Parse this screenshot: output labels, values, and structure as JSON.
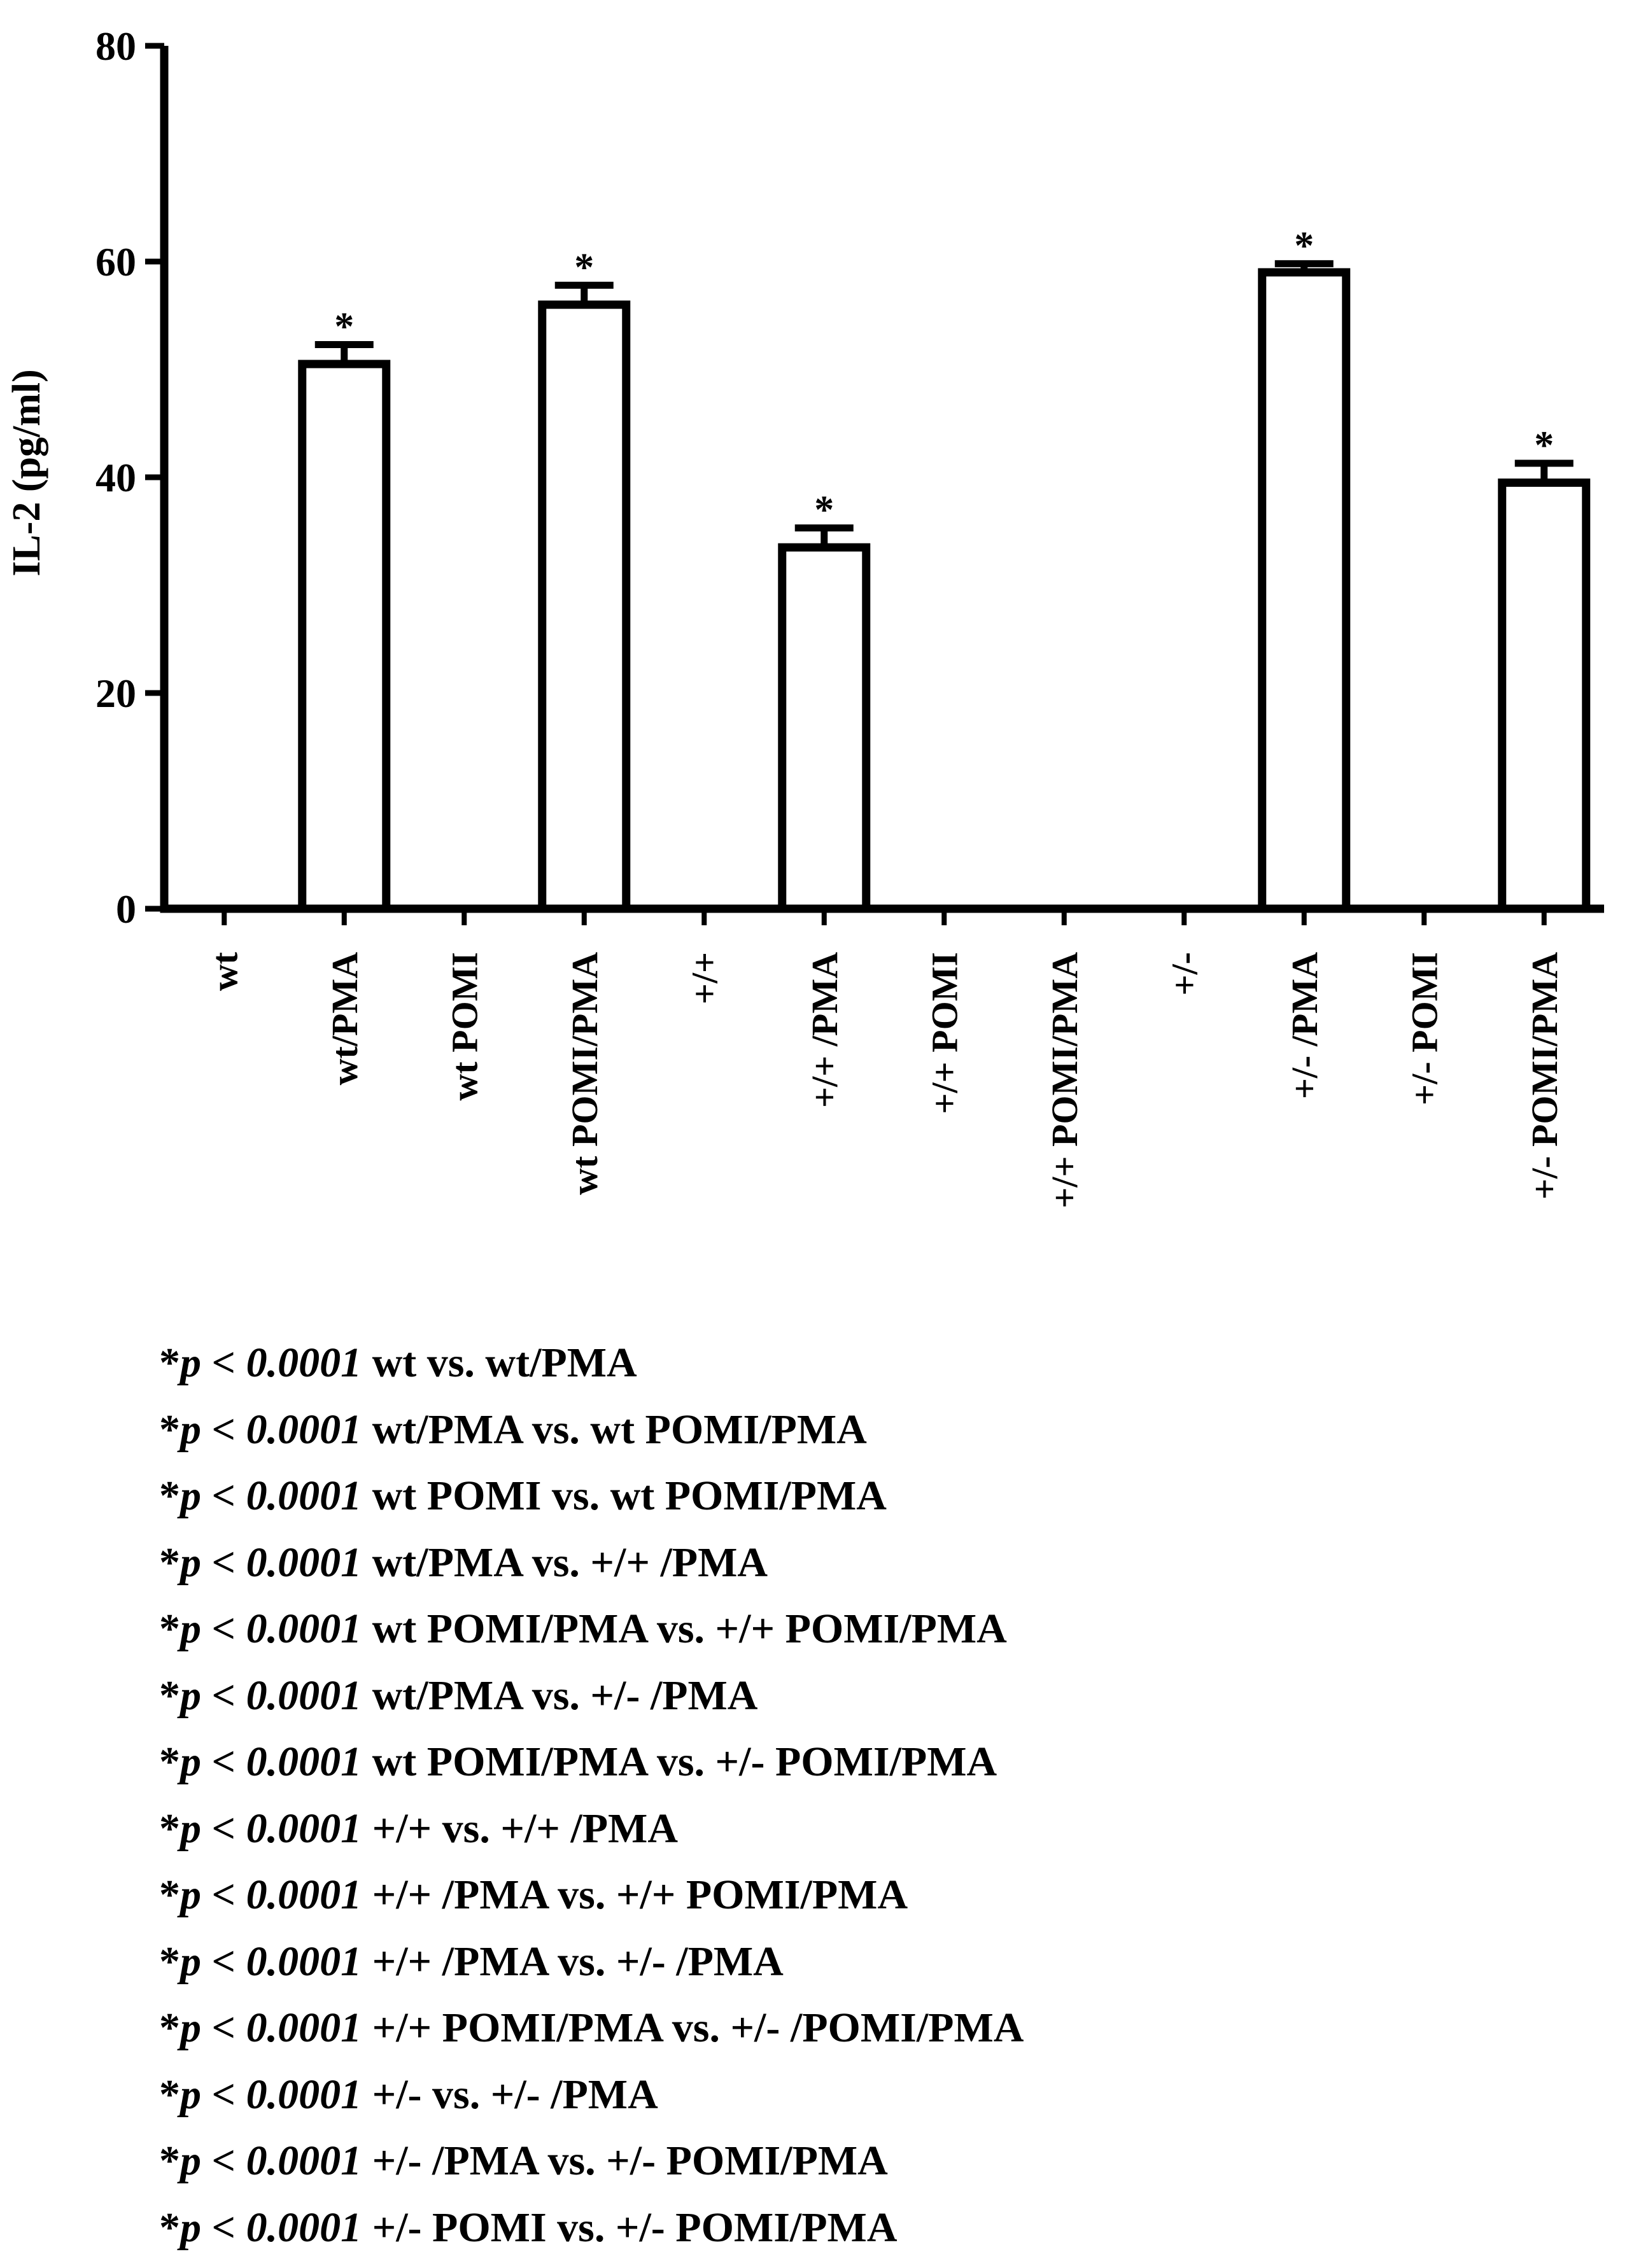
{
  "chart_data": {
    "type": "bar",
    "title": "",
    "xlabel": "",
    "ylabel": "IL-2 (pg/ml)",
    "ylim": [
      0,
      80
    ],
    "yticks": [
      0,
      20,
      40,
      60,
      80
    ],
    "grid": false,
    "categories": [
      "wt",
      "wt/PMA",
      "wt POMI",
      "wt POMI/PMA",
      "+/+",
      "+/+ /PMA",
      "+/+  POMI",
      "+/+ POMI/PMA",
      "+/-",
      "+/- /PMA",
      "+/- POMI",
      "+/- POMI/PMA"
    ],
    "values": [
      0,
      50.5,
      0,
      56,
      0,
      33.5,
      0,
      0,
      0,
      59,
      0,
      39.5
    ],
    "errors": [
      0,
      1.8,
      0,
      1.8,
      0,
      1.8,
      0,
      0,
      0,
      0.8,
      0,
      1.8
    ],
    "annotations": [
      "",
      "*",
      "",
      "*",
      "",
      "*",
      "",
      "",
      "",
      "*",
      "",
      "*"
    ]
  },
  "footnotes": [
    {
      "star": "*",
      "pv": "p < 0.0001",
      "text": " wt vs. wt/PMA"
    },
    {
      "star": "*",
      "pv": "p < 0.0001",
      "text": " wt/PMA vs. wt POMI/PMA"
    },
    {
      "star": "*",
      "pv": "p < 0.0001",
      "text": " wt POMI vs. wt POMI/PMA"
    },
    {
      "star": "*",
      "pv": "p < 0.0001",
      "text": " wt/PMA vs. +/+ /PMA"
    },
    {
      "star": "*",
      "pv": "p < 0.0001",
      "text": " wt POMI/PMA vs. +/+ POMI/PMA"
    },
    {
      "star": "*",
      "pv": "p < 0.0001",
      "text": " wt/PMA vs. +/- /PMA"
    },
    {
      "star": "*",
      "pv": "p < 0.0001",
      "text": " wt POMI/PMA vs. +/- POMI/PMA"
    },
    {
      "star": "*",
      "pv": "p < 0.0001",
      "text": " +/+ vs. +/+ /PMA"
    },
    {
      "star": "*",
      "pv": "p < 0.0001",
      "text": " +/+ /PMA vs. +/+ POMI/PMA"
    },
    {
      "star": "*",
      "pv": "p < 0.0001",
      "text": " +/+ /PMA vs. +/- /PMA"
    },
    {
      "star": "*",
      "pv": "p < 0.0001",
      "text": " +/+ POMI/PMA vs. +/-  /POMI/PMA"
    },
    {
      "star": "*",
      "pv": "p < 0.0001",
      "text": " +/- vs. +/- /PMA"
    },
    {
      "star": "*",
      "pv": "p < 0.0001",
      "text": " +/- /PMA vs. +/-  POMI/PMA"
    },
    {
      "star": "*",
      "pv": "p < 0.0001",
      "text": " +/-  POMI vs. +/-  POMI/PMA"
    }
  ],
  "colors": {
    "bar_fill": "#ffffff",
    "bar_stroke": "#000000",
    "axis": "#000000"
  }
}
